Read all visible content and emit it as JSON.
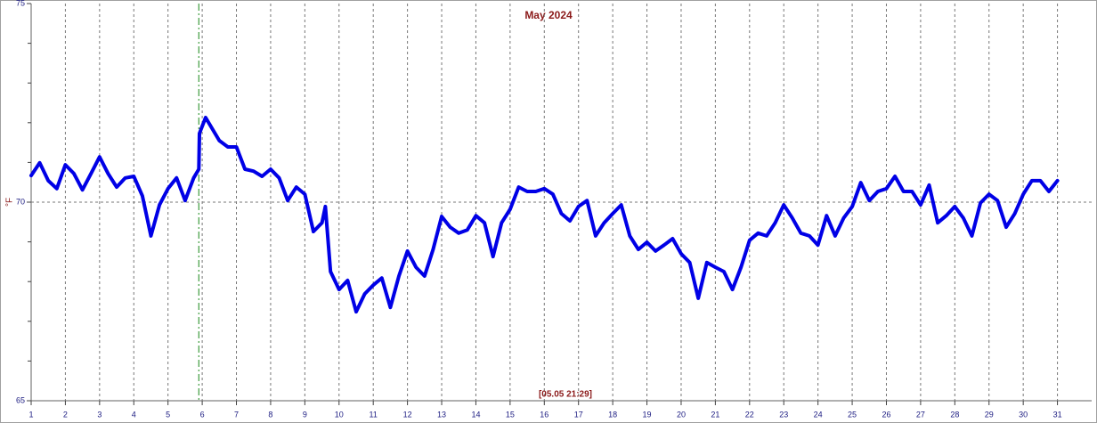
{
  "chart_data": {
    "type": "line",
    "title": "May 2024",
    "y_label": "°F",
    "annotation": "[05.05 21:29]",
    "marker_x": 5.9,
    "reference_line": 70,
    "vgrid": true,
    "xlim": [
      1,
      32
    ],
    "xticks": [
      1,
      2,
      3,
      4,
      5,
      6,
      7,
      8,
      9,
      10,
      11,
      12,
      13,
      14,
      15,
      16,
      17,
      18,
      19,
      20,
      21,
      22,
      23,
      24,
      25,
      26,
      27,
      28,
      29,
      30,
      31
    ],
    "ylim": [
      65,
      75
    ],
    "yticks": [
      65,
      70,
      75
    ],
    "yminor_ticks": [
      66,
      67,
      68,
      69,
      71,
      72,
      73,
      74
    ],
    "series": [
      {
        "color": "#0000e6",
        "x": [
          1,
          1.25,
          1.5,
          1.75,
          2,
          2.25,
          2.5,
          2.75,
          3,
          3.25,
          3.5,
          3.75,
          4,
          4.25,
          4.5,
          4.75,
          5,
          5.25,
          5.5,
          5.75,
          5.9,
          5.92,
          6.1,
          6.5,
          6.75,
          7,
          7.25,
          7.5,
          7.75,
          8,
          8.25,
          8.5,
          8.75,
          9,
          9.25,
          9.5,
          9.6,
          9.75,
          10,
          10.25,
          10.5,
          10.75,
          11,
          11.25,
          11.5,
          11.75,
          12,
          12.25,
          12.5,
          12.75,
          13,
          13.25,
          13.5,
          13.75,
          14,
          14.25,
          14.5,
          14.75,
          15,
          15.25,
          15.5,
          15.75,
          16,
          16.25,
          16.5,
          16.75,
          17,
          17.25,
          17.5,
          17.75,
          18,
          18.25,
          18.5,
          18.75,
          19,
          19.25,
          19.5,
          19.75,
          20,
          20.25,
          20.5,
          20.75,
          21,
          21.25,
          21.5,
          21.75,
          22,
          22.25,
          22.5,
          22.75,
          23,
          23.25,
          23.5,
          23.75,
          24,
          24.25,
          24.5,
          24.75,
          25,
          25.25,
          25.5,
          25.75,
          26,
          26.25,
          26.5,
          26.75,
          27,
          27.25,
          27.5,
          27.75,
          28,
          28.25,
          28.5,
          28.75,
          29,
          29.25,
          29.5,
          29.75,
          30,
          30.25,
          30.5,
          30.75,
          31
        ],
        "values": [
          70.67,
          70.99,
          70.54,
          70.34,
          70.94,
          70.72,
          70.31,
          70.72,
          71.14,
          70.72,
          70.38,
          70.61,
          70.65,
          70.16,
          69.15,
          69.93,
          70.34,
          70.61,
          70.04,
          70.61,
          70.83,
          71.73,
          72.13,
          71.55,
          71.39,
          71.39,
          70.83,
          70.78,
          70.65,
          70.83,
          70.61,
          70.04,
          70.38,
          70.2,
          69.26,
          69.48,
          69.89,
          68.25,
          67.8,
          68.03,
          67.24,
          67.69,
          67.91,
          68.09,
          67.35,
          68.14,
          68.77,
          68.36,
          68.14,
          68.81,
          69.64,
          69.37,
          69.22,
          69.3,
          69.66,
          69.48,
          68.63,
          69.48,
          69.82,
          70.38,
          70.27,
          70.27,
          70.34,
          70.2,
          69.71,
          69.53,
          69.89,
          70.04,
          69.15,
          69.48,
          69.71,
          69.93,
          69.15,
          68.81,
          68.99,
          68.77,
          68.92,
          69.08,
          68.7,
          68.48,
          67.58,
          68.48,
          68.36,
          68.25,
          67.8,
          68.36,
          69.04,
          69.22,
          69.15,
          69.48,
          69.93,
          69.6,
          69.22,
          69.15,
          68.92,
          69.66,
          69.15,
          69.6,
          69.89,
          70.49,
          70.04,
          70.27,
          70.34,
          70.65,
          70.27,
          70.27,
          69.93,
          70.43,
          69.48,
          69.66,
          69.89,
          69.6,
          69.15,
          69.98,
          70.2,
          70.04,
          69.37,
          69.71,
          70.2,
          70.54,
          70.54,
          70.27,
          70.54
        ]
      }
    ]
  }
}
